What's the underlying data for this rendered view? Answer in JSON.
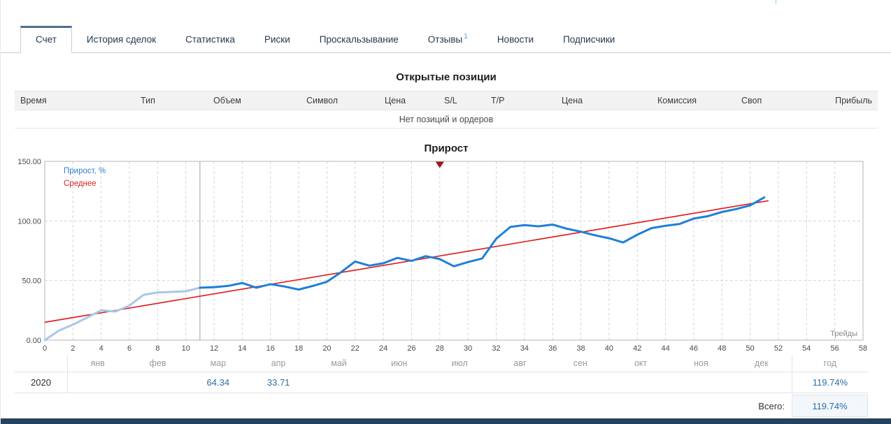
{
  "tabs": [
    {
      "id": "account",
      "label": "Счет",
      "active": true,
      "badge": ""
    },
    {
      "id": "history",
      "label": "История сделок",
      "active": false,
      "badge": ""
    },
    {
      "id": "statistics",
      "label": "Статистика",
      "active": false,
      "badge": ""
    },
    {
      "id": "risks",
      "label": "Риски",
      "active": false,
      "badge": ""
    },
    {
      "id": "slippage",
      "label": "Проскальзывание",
      "active": false,
      "badge": ""
    },
    {
      "id": "reviews",
      "label": "Отзывы",
      "active": false,
      "badge": "1"
    },
    {
      "id": "news",
      "label": "Новости",
      "active": false,
      "badge": ""
    },
    {
      "id": "subscribers",
      "label": "Подписчики",
      "active": false,
      "badge": ""
    }
  ],
  "positions": {
    "title": "Открытые позиции",
    "columns": [
      "Время",
      "Тип",
      "Объем",
      "Символ",
      "Цена",
      "S/L",
      "T/P",
      "Цена",
      "Комиссия",
      "Своп",
      "Прибыль"
    ],
    "empty_text": "Нет позиций и ордеров"
  },
  "chart_data": {
    "type": "line",
    "title": "Прирост",
    "x_axis_label": "Трейды",
    "xlim": [
      0,
      58
    ],
    "ylim": [
      0,
      150
    ],
    "x_ticks": [
      "0",
      "2",
      "4",
      "6",
      "8",
      "10",
      "12",
      "14",
      "16",
      "18",
      "20",
      "22",
      "24",
      "26",
      "28",
      "30",
      "32",
      "34",
      "36",
      "38",
      "40",
      "42",
      "44",
      "46",
      "48",
      "50",
      "52",
      "54",
      "56",
      "58"
    ],
    "y_ticks": [
      {
        "v": 150,
        "label": "150.00"
      },
      {
        "v": 100,
        "label": "100.00"
      },
      {
        "v": 50,
        "label": "50.00"
      },
      {
        "v": 0,
        "label": "0.00"
      }
    ],
    "grid": "dashed",
    "legend_position": "top-left",
    "series": [
      {
        "name": "Прирост, %",
        "color": "#1e7fd8",
        "pre_split_color": "#a9c7e7",
        "split_index": 11,
        "x_start": 0,
        "values": [
          0,
          8,
          13,
          19,
          25,
          24,
          29,
          38,
          40,
          40.5,
          41,
          44,
          44.5,
          45.5,
          48,
          44,
          47,
          45,
          42.5,
          45.5,
          49,
          57,
          66,
          62.5,
          64.5,
          69,
          66.5,
          70.5,
          68,
          62,
          65.5,
          68.5,
          85,
          95,
          96.5,
          95.5,
          97,
          93.5,
          91,
          88,
          85.5,
          82,
          88.5,
          94,
          96,
          97.5,
          102,
          104,
          107.5,
          110,
          113,
          119.74
        ]
      },
      {
        "name": "Среднее",
        "color": "#e02020",
        "points": [
          [
            0,
            15
          ],
          [
            51.3,
            117
          ]
        ]
      }
    ],
    "legend": [
      {
        "label": "Прирост, %",
        "color": "#2f7ed8"
      },
      {
        "label": "Среднее",
        "color": "#e02020"
      }
    ],
    "month_divider_x": 11,
    "event_marker": {
      "x": 28,
      "color": "#9d1616"
    }
  },
  "summary": {
    "months": [
      "янв",
      "фев",
      "мар",
      "апр",
      "май",
      "июн",
      "июл",
      "авг",
      "сен",
      "окт",
      "ноя",
      "дек"
    ],
    "year_header": "год",
    "rows": [
      {
        "year": "2020",
        "month_values": [
          "",
          "",
          "64.34",
          "33.71",
          "",
          "",
          "",
          "",
          "",
          "",
          "",
          ""
        ],
        "year_total": "119.74%"
      }
    ],
    "total_label": "Всего:",
    "total_value": "119.74%"
  }
}
